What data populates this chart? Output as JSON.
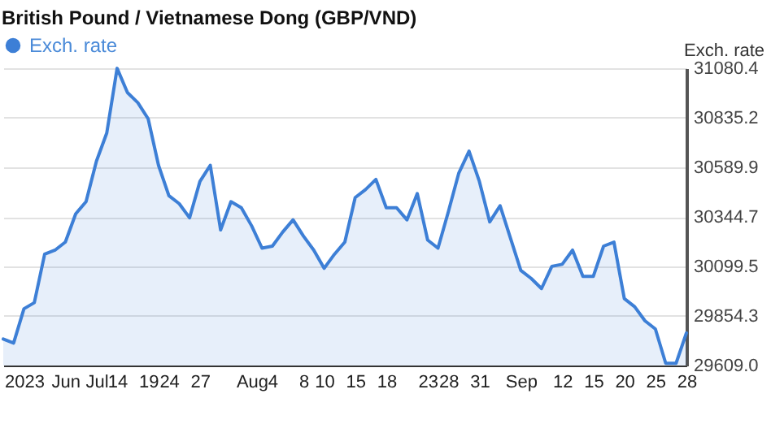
{
  "chart_data": {
    "type": "area",
    "title": "British Pound / Vietnamese Dong (GBP/VND)",
    "ylabel": "Exch. rate",
    "categories": [
      null,
      null,
      "2023",
      null,
      null,
      null,
      "Jun",
      null,
      null,
      "Jul",
      null,
      "14",
      null,
      null,
      "19",
      null,
      "24",
      null,
      null,
      "27",
      null,
      null,
      null,
      null,
      "Aug",
      null,
      "4",
      null,
      null,
      "8",
      null,
      "10",
      null,
      null,
      "15",
      null,
      null,
      "18",
      null,
      null,
      null,
      "23",
      null,
      "28",
      null,
      null,
      "31",
      null,
      null,
      null,
      "Sep",
      null,
      null,
      null,
      "12",
      null,
      null,
      "15",
      null,
      null,
      "20",
      null,
      null,
      "25",
      null,
      null,
      "28"
    ],
    "series": [
      {
        "name": "Exch. rate",
        "color": "#3d7fd6",
        "values": [
          29740,
          29720,
          29890,
          29920,
          30160,
          30180,
          30220,
          30360,
          30420,
          30620,
          30760,
          31080,
          30960,
          30910,
          30830,
          30600,
          30450,
          30410,
          30340,
          30520,
          30600,
          30280,
          30420,
          30390,
          30300,
          30190,
          30200,
          30270,
          30330,
          30250,
          30180,
          30090,
          30160,
          30220,
          30440,
          30480,
          30530,
          30390,
          30390,
          30330,
          30460,
          30230,
          30190,
          30370,
          30560,
          30670,
          30520,
          30320,
          30400,
          30240,
          30080,
          30040,
          29990,
          30100,
          30110,
          30180,
          30050,
          30050,
          30200,
          30220,
          29940,
          29900,
          29830,
          29790,
          29620,
          29620,
          29770
        ]
      }
    ],
    "ylim": [
      29609.0,
      31080.4
    ],
    "yticks": [
      {
        "value": 29609.0,
        "label": "29609.0"
      },
      {
        "value": 29854.3,
        "label": "29854.3"
      },
      {
        "value": 30099.5,
        "label": "30099.5"
      },
      {
        "value": 30344.7,
        "label": "30344.7"
      },
      {
        "value": 30589.9,
        "label": "30589.9"
      },
      {
        "value": 30835.2,
        "label": "30835.2"
      },
      {
        "value": 31080.4,
        "label": "31080.4"
      }
    ],
    "grid": "y",
    "legend": "top left"
  }
}
